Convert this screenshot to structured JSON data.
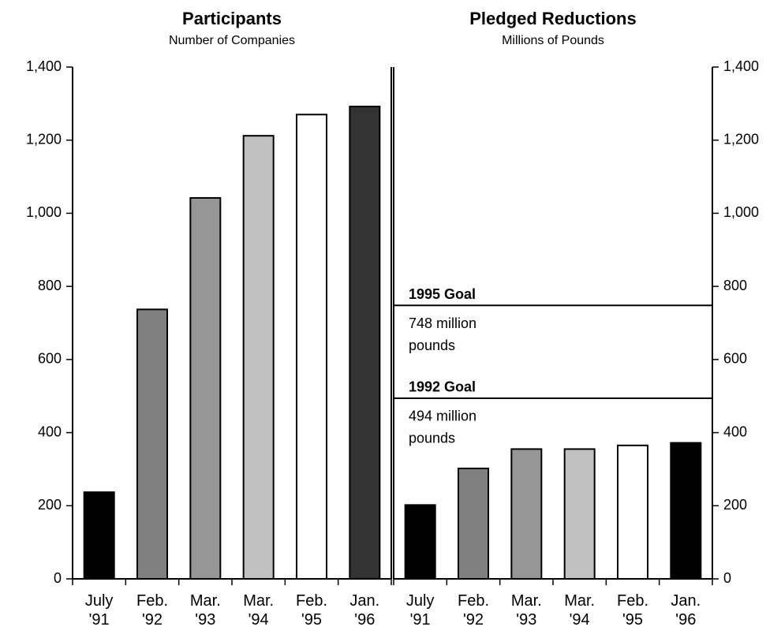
{
  "chart_data": [
    {
      "type": "bar",
      "title": "Participants",
      "subtitle": "Number of Companies",
      "categories": [
        "July '91",
        "Feb. '92",
        "Mar. '93",
        "Mar. '94",
        "Feb. '95",
        "Jan. '96"
      ],
      "values": [
        237,
        737,
        1042,
        1212,
        1270,
        1292
      ],
      "colors": [
        "#000000",
        "#808080",
        "#969696",
        "#c0c0c0",
        "#ffffff",
        "#333333"
      ],
      "ylim": [
        0,
        1400
      ],
      "yticks": [
        0,
        200,
        400,
        600,
        800,
        {
          "value": 1000,
          "label": "1,000"
        },
        {
          "value": 1200,
          "label": "1,200"
        },
        {
          "value": 1400,
          "label": "1,400"
        }
      ],
      "axis_side": "left"
    },
    {
      "type": "bar",
      "title": "Pledged Reductions",
      "subtitle": "Millions of Pounds",
      "categories": [
        "July '91",
        "Feb. '92",
        "Mar. '93",
        "Mar. '94",
        "Feb. '95",
        "Jan. '96"
      ],
      "values": [
        202,
        302,
        355,
        355,
        365,
        372
      ],
      "colors": [
        "#000000",
        "#808080",
        "#969696",
        "#c0c0c0",
        "#ffffff",
        "#000000"
      ],
      "ylim": [
        0,
        1400
      ],
      "yticks": [
        0,
        200,
        400,
        600,
        800,
        {
          "value": 1000,
          "label": "1,000"
        },
        {
          "value": 1200,
          "label": "1,200"
        },
        {
          "value": 1400,
          "label": "1,400"
        }
      ],
      "axis_side": "right",
      "reference_lines": [
        {
          "value": 748,
          "label": "1995 Goal",
          "note": [
            "748 million",
            "pounds"
          ]
        },
        {
          "value": 494,
          "label": "1992 Goal",
          "note": [
            "494 million",
            "pounds"
          ]
        }
      ]
    }
  ]
}
